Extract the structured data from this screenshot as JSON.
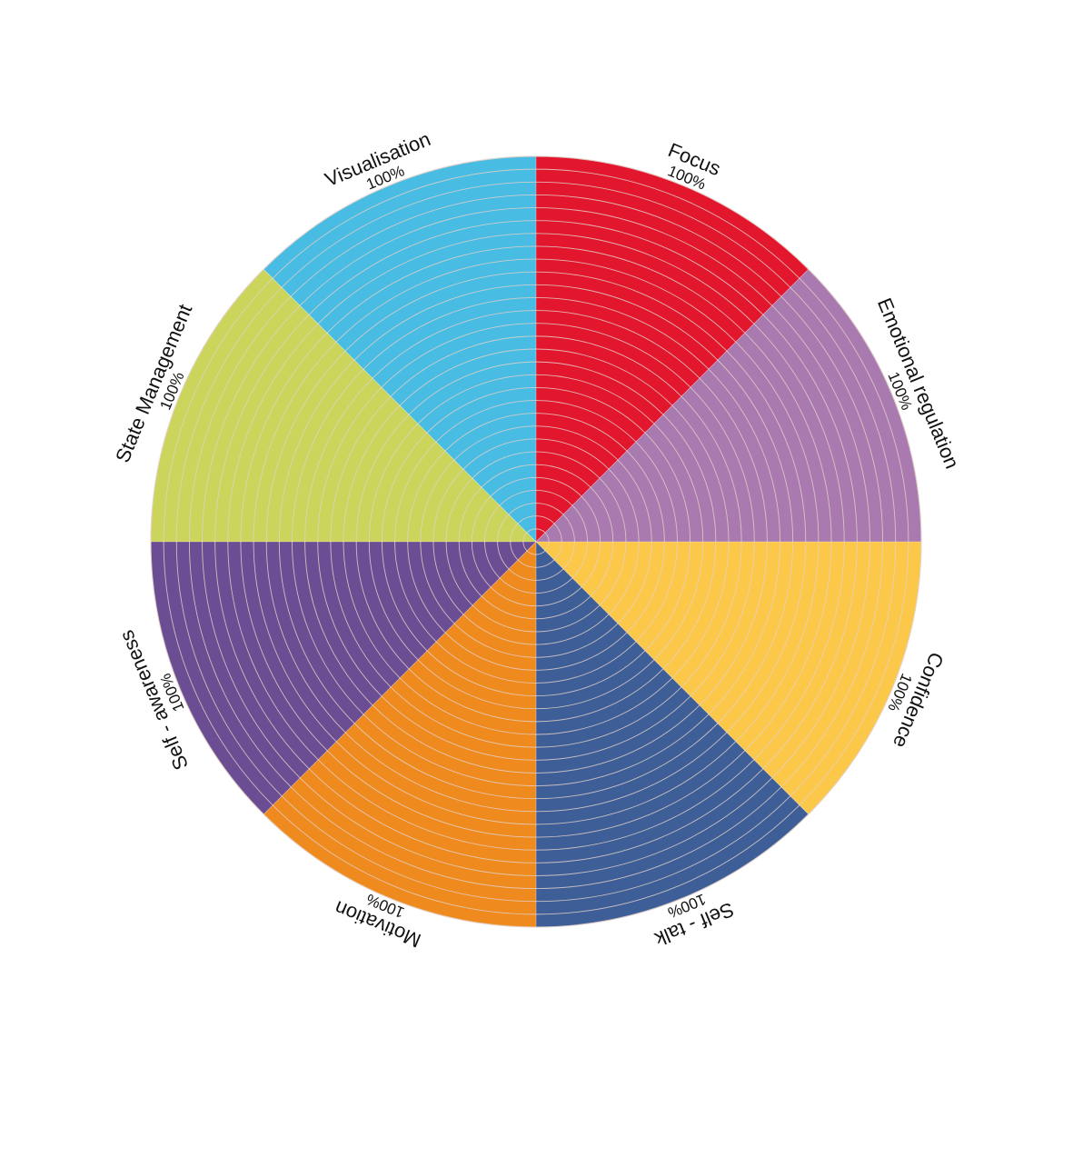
{
  "chart_data": {
    "type": "pie",
    "title": "",
    "rings": 30,
    "ring_line_color": "#e3d0c8",
    "segments": [
      {
        "name": "Focus",
        "value": 100,
        "value_label": "100%",
        "color": "#e2162d"
      },
      {
        "name": "Emotional regulation",
        "value": 100,
        "value_label": "100%",
        "color": "#a97aaf"
      },
      {
        "name": "Confidence",
        "value": 100,
        "value_label": "100%",
        "color": "#fcc84a"
      },
      {
        "name": "Self - talk",
        "value": 100,
        "value_label": "100%",
        "color": "#3d5e97"
      },
      {
        "name": "Motivation",
        "value": 100,
        "value_label": "100%",
        "color": "#ef8a1e"
      },
      {
        "name": "Self - awareness",
        "value": 100,
        "value_label": "100%",
        "color": "#6a4d92"
      },
      {
        "name": "State Management",
        "value": 100,
        "value_label": "100%",
        "color": "#cbd55b"
      },
      {
        "name": "Visualisation",
        "value": 100,
        "value_label": "100%",
        "color": "#48bce2"
      }
    ]
  }
}
